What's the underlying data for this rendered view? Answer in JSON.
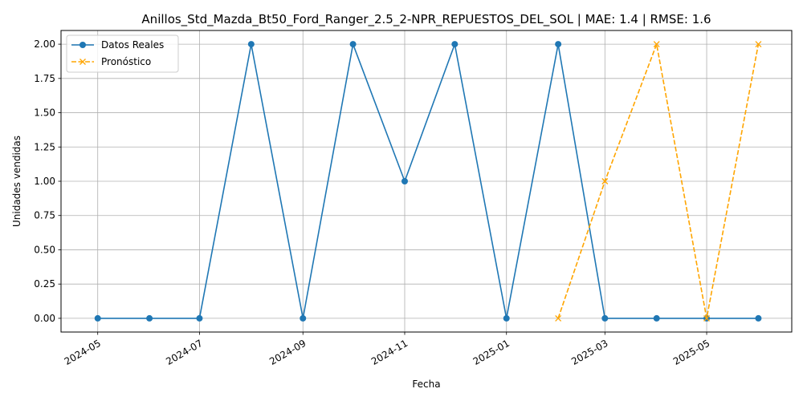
{
  "chart_data": {
    "type": "line",
    "title": "Anillos_Std_Mazda_Bt50_Ford_Ranger_2.5_2-NPR_REPUESTOS_DEL_SOL | MAE: 1.4 | RMSE: 1.6",
    "xlabel": "Fecha",
    "ylabel": "Unidades vendidas",
    "ylim": [
      -0.1,
      2.1
    ],
    "xlim": [
      "2024-04-09",
      "2025-06-21"
    ],
    "grid": true,
    "legend_position": "top-left",
    "x_ticks": [
      "2024-05",
      "2024-07",
      "2024-09",
      "2024-11",
      "2025-01",
      "2025-03",
      "2025-05"
    ],
    "y_ticks": [
      "0.00",
      "0.25",
      "0.50",
      "0.75",
      "1.00",
      "1.25",
      "1.50",
      "1.75",
      "2.00"
    ],
    "series": [
      {
        "name": "Datos Reales",
        "color": "#1f77b4",
        "style": "solid",
        "marker": "circle",
        "x": [
          "2024-05-01",
          "2024-06-01",
          "2024-07-01",
          "2024-08-01",
          "2024-09-01",
          "2024-10-01",
          "2024-11-01",
          "2024-12-01",
          "2025-01-01",
          "2025-02-01",
          "2025-03-01",
          "2025-04-01",
          "2025-05-01",
          "2025-06-01"
        ],
        "values": [
          0,
          0,
          0,
          2,
          0,
          2,
          1,
          2,
          0,
          2,
          0,
          0,
          0,
          0
        ]
      },
      {
        "name": "Pronóstico",
        "color": "#ffa500",
        "style": "dashed",
        "marker": "x",
        "x": [
          "2025-02-01",
          "2025-03-01",
          "2025-04-01",
          "2025-05-01",
          "2025-06-01"
        ],
        "values": [
          0,
          1,
          2,
          0,
          2
        ]
      }
    ]
  }
}
